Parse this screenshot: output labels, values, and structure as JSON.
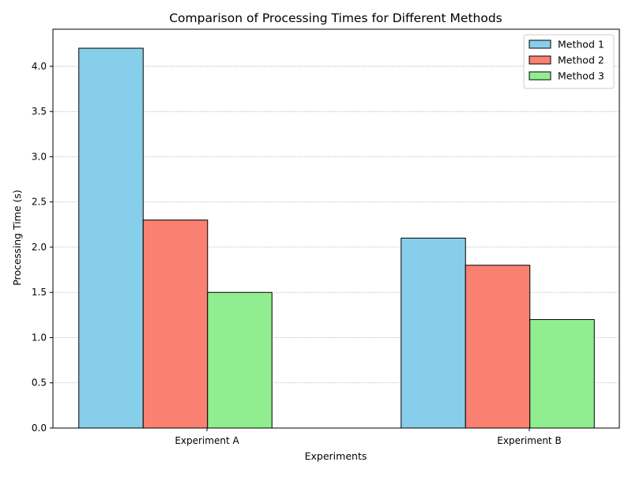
{
  "chart_data": {
    "type": "bar",
    "title": "Comparison of Processing Times for Different Methods",
    "xlabel": "Experiments",
    "ylabel": "Processing Time (s)",
    "categories": [
      "Experiment A",
      "Experiment B"
    ],
    "series": [
      {
        "name": "Method 1",
        "values": [
          4.2,
          2.1
        ],
        "color": "#87CEEB"
      },
      {
        "name": "Method 2",
        "values": [
          2.3,
          1.8
        ],
        "color": "#FA8072"
      },
      {
        "name": "Method 3",
        "values": [
          1.5,
          1.2
        ],
        "color": "#90EE90"
      }
    ],
    "ylim": [
      0,
      4.41
    ],
    "yticks": [
      "0.0",
      "0.5",
      "1.0",
      "1.5",
      "2.0",
      "2.5",
      "3.0",
      "3.5",
      "4.0"
    ],
    "grid": "y-axis dotted",
    "legend_position": "top-right"
  }
}
